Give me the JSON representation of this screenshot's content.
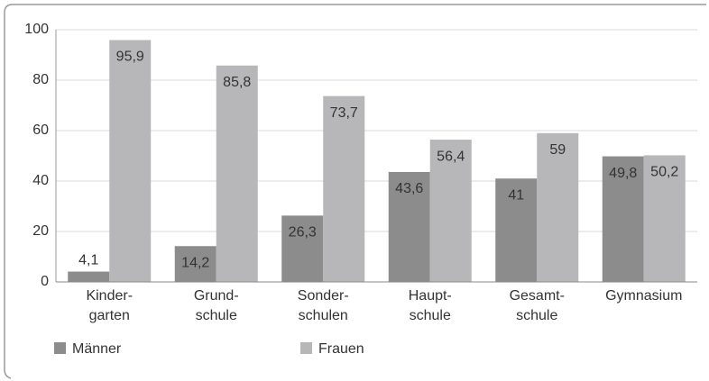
{
  "chart_data": {
    "type": "bar",
    "categories": [
      "Kinder-\ngarten",
      "Grund-\nschule",
      "Sonder-\nschulen",
      "Haupt-\nschule",
      "Gesamt-\nschule",
      "Gymnasium"
    ],
    "series": [
      {
        "name": "Männer",
        "color": "#8c8c8c",
        "values": [
          4.1,
          14.2,
          26.3,
          43.6,
          41,
          49.8
        ],
        "value_labels": [
          "4,1",
          "14,2",
          "26,3",
          "43,6",
          "41",
          "49,8"
        ]
      },
      {
        "name": "Frauen",
        "color": "#b7b7b9",
        "values": [
          95.9,
          85.8,
          73.7,
          56.4,
          59,
          50.2
        ],
        "value_labels": [
          "95,9",
          "85,8",
          "73,7",
          "56,4",
          "59",
          "50,2"
        ]
      }
    ],
    "ylim": [
      0,
      100
    ],
    "yticks": [
      0,
      20,
      40,
      60,
      80,
      100
    ],
    "grid": true
  }
}
